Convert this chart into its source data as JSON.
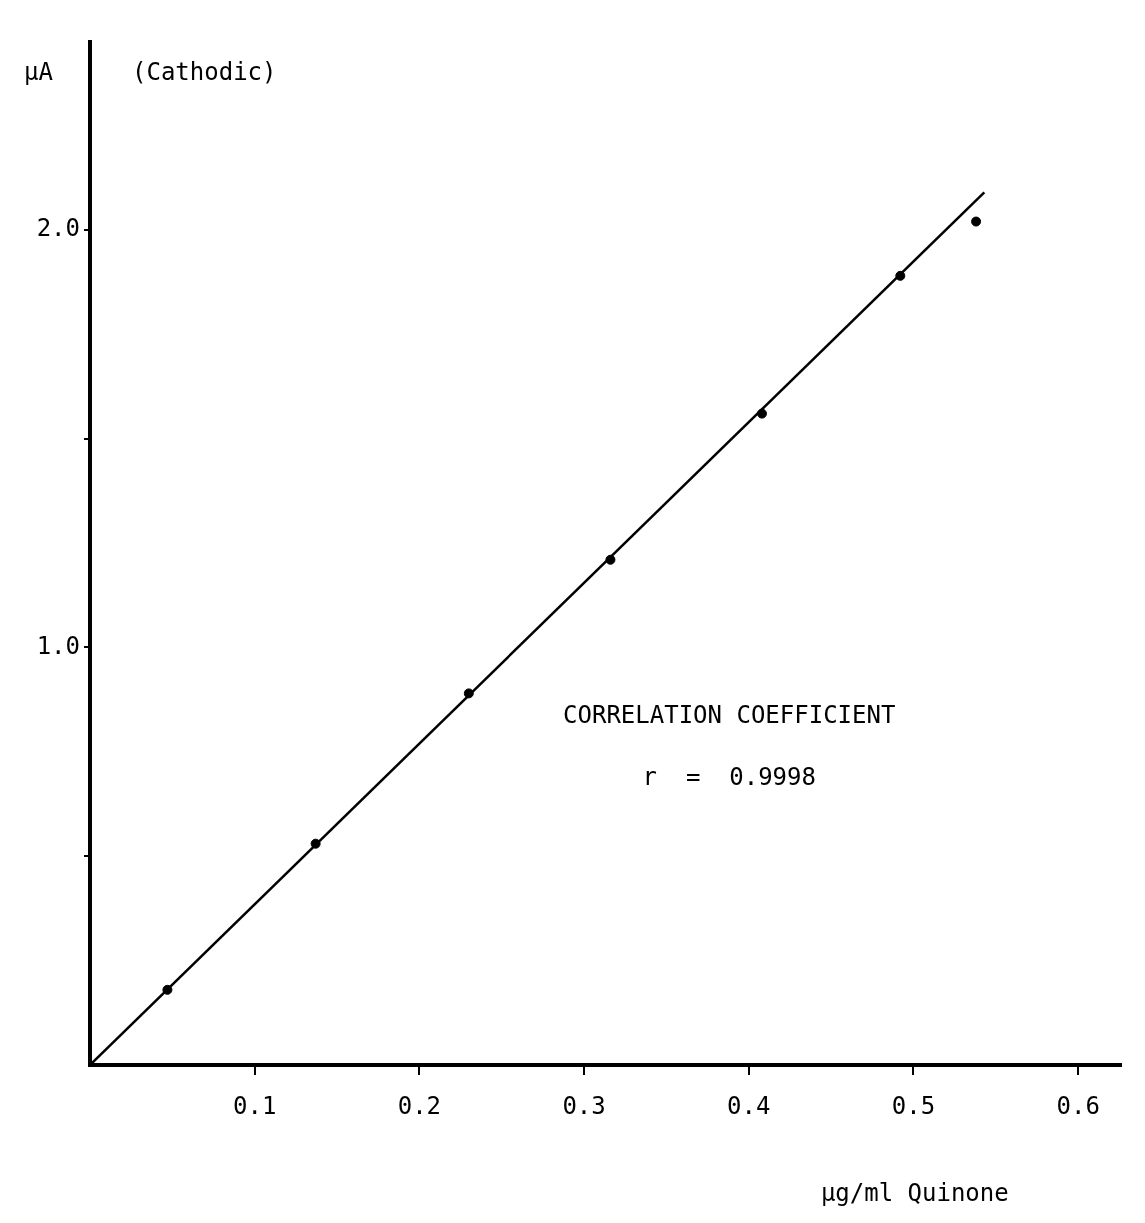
{
  "chart_data": {
    "type": "scatter",
    "ylabel": "μA",
    "xlabel": "μg/ml Quinone",
    "annotations": [
      "(Cathodic)",
      "CORRELATION COEFFICIENT",
      "r  =  0.9998"
    ],
    "xlim": [
      0,
      0.626
    ],
    "ylim": [
      0,
      2.45
    ],
    "xticks": [
      0.1,
      0.2,
      0.3,
      0.4,
      0.5,
      0.6
    ],
    "yticks": [
      {
        "value": 0.5,
        "label": null
      },
      {
        "value": 1,
        "label": "1.0"
      },
      {
        "value": 1.5,
        "label": null
      },
      {
        "value": 2,
        "label": "2.0"
      }
    ],
    "grid": false,
    "legend": false,
    "marker": "circle",
    "series": [
      {
        "color": "#000000",
        "x": [
          0.047,
          0.137,
          0.23,
          0.316,
          0.408,
          0.492,
          0.538
        ],
        "values": [
          0.18,
          0.53,
          0.89,
          1.21,
          1.56,
          1.89,
          2.02
        ]
      },
      {
        "type": "line",
        "color": "#000000",
        "x": [
          0,
          0.543
        ],
        "values": [
          0,
          2.09
        ],
        "marker": "none",
        "line_style": "solid"
      }
    ]
  }
}
